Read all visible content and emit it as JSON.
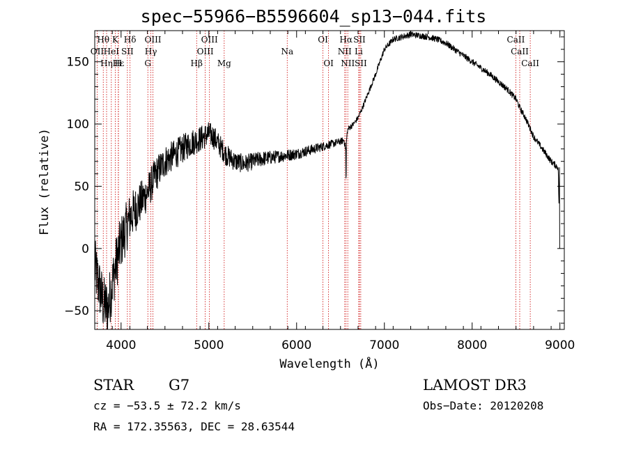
{
  "chart_data": {
    "type": "line",
    "title": "spec−55966−B5596604_sp13−044.fits",
    "xlabel": "Wavelength (Å)",
    "ylabel": "Flux (relative)",
    "xlim": [
      3700,
      9050
    ],
    "ylim": [
      -65,
      175
    ],
    "x_ticks": [
      4000,
      5000,
      6000,
      7000,
      8000,
      9000
    ],
    "y_ticks": [
      -50,
      0,
      50,
      100,
      150
    ],
    "x_tick_labels": [
      "4000",
      "5000",
      "6000",
      "7000",
      "8000",
      "9000"
    ],
    "y_tick_labels": [
      "−50",
      "0",
      "50",
      "100",
      "150"
    ],
    "series": [
      {
        "name": "flux",
        "anchor_x": [
          3700,
          3750,
          3800,
          3850,
          3900,
          3950,
          4000,
          4050,
          4100,
          4150,
          4200,
          4250,
          4300,
          4400,
          4500,
          4600,
          4700,
          4800,
          4900,
          5000,
          5050,
          5100,
          5200,
          5300,
          5400,
          5500,
          5600,
          5700,
          5800,
          5900,
          6000,
          6100,
          6200,
          6300,
          6400,
          6500,
          6540,
          6560,
          6580,
          6600,
          6650,
          6700,
          6750,
          6800,
          6900,
          7000,
          7100,
          7200,
          7300,
          7400,
          7500,
          7600,
          7700,
          7800,
          7900,
          8000,
          8100,
          8200,
          8300,
          8400,
          8500,
          8550,
          8600,
          8650,
          8700,
          8800,
          8900,
          8980,
          9000
        ],
        "anchor_y": [
          -15,
          -30,
          -45,
          -48,
          -28,
          -10,
          5,
          15,
          25,
          30,
          35,
          40,
          45,
          60,
          70,
          75,
          80,
          85,
          88,
          92,
          90,
          85,
          75,
          70,
          68,
          70,
          72,
          73,
          74,
          75,
          76,
          78,
          80,
          82,
          84,
          86,
          87,
          80,
          95,
          97,
          100,
          105,
          113,
          122,
          140,
          160,
          168,
          170,
          172,
          171,
          170,
          168,
          165,
          160,
          155,
          150,
          145,
          140,
          134,
          128,
          120,
          112,
          106,
          98,
          90,
          80,
          70,
          65,
          0
        ],
        "noise": [
          [
            3700,
            24
          ],
          [
            4000,
            22
          ],
          [
            4300,
            15
          ],
          [
            4600,
            12
          ],
          [
            5000,
            10
          ],
          [
            5300,
            8
          ],
          [
            5800,
            5
          ],
          [
            6200,
            4
          ],
          [
            6700,
            2
          ],
          [
            7200,
            2.5
          ],
          [
            9000,
            2.5
          ]
        ]
      }
    ],
    "lines": [
      {
        "label": "Hθ",
        "x": 3797,
        "row": 0
      },
      {
        "label": "K",
        "x": 3934,
        "row": 0
      },
      {
        "label": "Hδ",
        "x": 4102,
        "row": 0
      },
      {
        "label": "OIII",
        "x": 4363,
        "row": 0
      },
      {
        "label": "OIII",
        "x": 5007,
        "row": 0
      },
      {
        "label": "OI",
        "x": 6300,
        "row": 0
      },
      {
        "label": "Hα",
        "x": 6563,
        "row": 0
      },
      {
        "label": "SII",
        "x": 6716,
        "row": 0
      },
      {
        "label": "CaII",
        "x": 8498,
        "row": 0
      },
      {
        "label": "OII",
        "x": 3727,
        "row": 1
      },
      {
        "label": "HeI",
        "x": 3889,
        "row": 1
      },
      {
        "label": "SII",
        "x": 4072,
        "row": 1
      },
      {
        "label": "Hγ",
        "x": 4340,
        "row": 1
      },
      {
        "label": "OIII",
        "x": 4959,
        "row": 1
      },
      {
        "label": "Na",
        "x": 5893,
        "row": 1
      },
      {
        "label": "NII",
        "x": 6548,
        "row": 1
      },
      {
        "label": "Li",
        "x": 6708,
        "row": 1
      },
      {
        "label": "CaII",
        "x": 8542,
        "row": 1
      },
      {
        "label": "Hε",
        "x": 3970,
        "row": 2
      },
      {
        "label": "Hη",
        "x": 3835,
        "row": 2
      },
      {
        "label": "H",
        "x": 3968,
        "row": 2
      },
      {
        "label": "G",
        "x": 4305,
        "row": 2
      },
      {
        "label": "Hβ",
        "x": 4861,
        "row": 2
      },
      {
        "label": "Mg",
        "x": 5175,
        "row": 2
      },
      {
        "label": "OI",
        "x": 6364,
        "row": 2
      },
      {
        "label": "NII",
        "x": 6583,
        "row": 2
      },
      {
        "label": "SII",
        "x": 6731,
        "row": 2
      },
      {
        "label": "CaII",
        "x": 8662,
        "row": 2
      }
    ],
    "line_color": "#cc0000",
    "data_color": "#000000"
  },
  "info": {
    "obj_class": "STAR",
    "subclass": "G7",
    "survey": "LAMOST DR3",
    "cz": "cz = −53.5 ± 72.2 km/s",
    "radec": "RA = 172.35563, DEC =  28.63544",
    "obs_date": "Obs−Date: 20120208"
  }
}
